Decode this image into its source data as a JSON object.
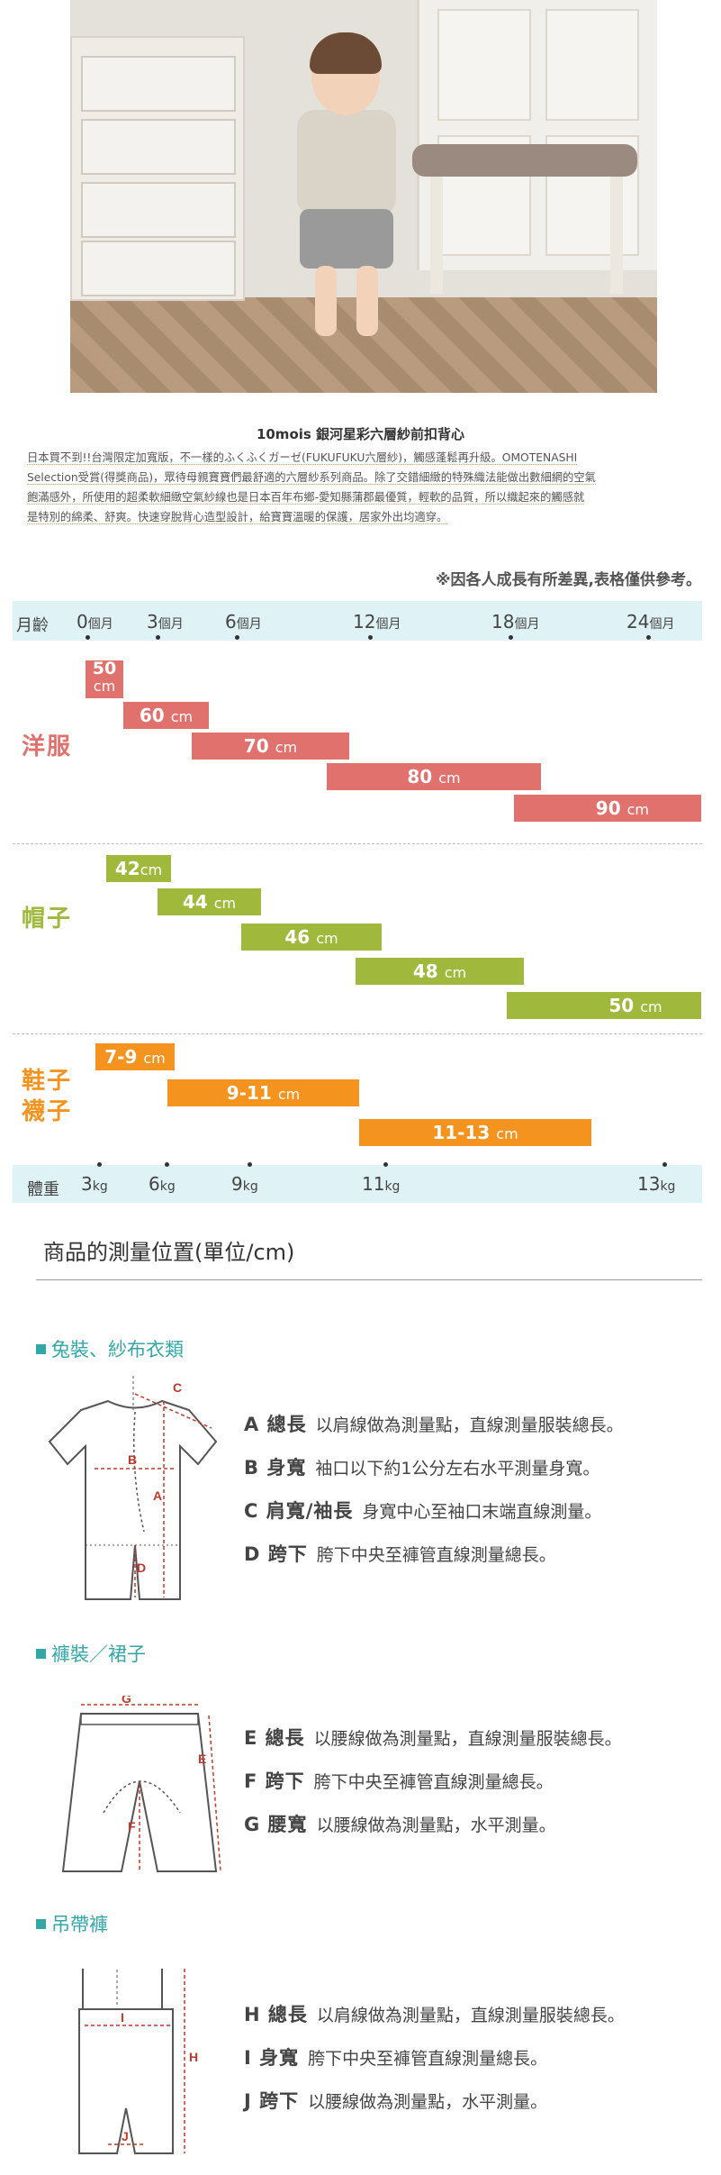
{
  "product": {
    "title": "10mois 銀河星彩六層紗前扣背心",
    "description_lines": [
      "日本買不到!!台灣限定加寬版，不一樣的ふくふくガーゼ(FUKUFUKU六層紗)，觸感蓬鬆再升級。OMOTENASHI",
      "Selection受賞(得獎商品)，眾待母親寶寶們最舒適的六層紗系列商品。除了交錯細緻的特殊織法能做出數細網的空氣",
      "飽滿感外，所使用的超柔軟細緻空氣紗線也是日本百年布鄉-愛知縣蒲郡最優質，輕軟的品質，所以織起來的觸感就",
      "是特別的綿柔、舒爽。快速穿脫背心造型設計，給寶寶溫暖的保護，居家外出均適穿。"
    ]
  },
  "size_chart": {
    "note": "※因各人成長有所差異,表格僅供參考。",
    "age_label": "月齡",
    "weight_label": "體重",
    "ages": [
      {
        "num": "0",
        "unit": "個月"
      },
      {
        "num": "3",
        "unit": "個月"
      },
      {
        "num": "6",
        "unit": "個月"
      },
      {
        "num": "12",
        "unit": "個月"
      },
      {
        "num": "18",
        "unit": "個月"
      },
      {
        "num": "24",
        "unit": "個月"
      }
    ],
    "weights": [
      {
        "num": "3",
        "unit": "kg"
      },
      {
        "num": "6",
        "unit": "kg"
      },
      {
        "num": "9",
        "unit": "kg"
      },
      {
        "num": "11",
        "unit": "kg"
      },
      {
        "num": "13",
        "unit": "kg"
      }
    ],
    "clothing": {
      "label": "洋服",
      "color": "#e0716d",
      "bars": [
        {
          "value": "50",
          "unit": "cm"
        },
        {
          "value": "60",
          "unit": "cm"
        },
        {
          "value": "70",
          "unit": "cm"
        },
        {
          "value": "80",
          "unit": "cm"
        },
        {
          "value": "90",
          "unit": "cm"
        }
      ]
    },
    "hats": {
      "label": "帽子",
      "color": "#a0b93c",
      "bars": [
        {
          "value": "42",
          "unit": "cm"
        },
        {
          "value": "44",
          "unit": "cm"
        },
        {
          "value": "46",
          "unit": "cm"
        },
        {
          "value": "48",
          "unit": "cm"
        },
        {
          "value": "50",
          "unit": "cm"
        }
      ]
    },
    "shoes": {
      "label_line1": "鞋子",
      "label_line2": "襪子",
      "color": "#f4931e",
      "bars": [
        {
          "value": "7-9",
          "unit": "cm"
        },
        {
          "value": "9-11",
          "unit": "cm"
        },
        {
          "value": "11-13",
          "unit": "cm"
        }
      ]
    }
  },
  "measurement": {
    "title": "商品的測量位置(單位/cm)",
    "sections": [
      {
        "title": "兔裝、紗布衣類",
        "rows": [
          {
            "key": "A 總長",
            "desc": "以肩線做為測量點，直線測量服裝總長。"
          },
          {
            "key": "B 身寬",
            "desc": "袖口以下約1公分左右水平測量身寬。"
          },
          {
            "key": "C 肩寬/袖長",
            "desc": "身寬中心至袖口末端直線測量。"
          },
          {
            "key": "D 跨下",
            "desc": "胯下中央至褲管直線測量總長。"
          }
        ],
        "diagram_labels": [
          "C",
          "B",
          "A",
          "D"
        ]
      },
      {
        "title": "褲裝／裙子",
        "rows": [
          {
            "key": "E 總長",
            "desc": "以腰線做為測量點，直線測量服裝總長。"
          },
          {
            "key": "F 跨下",
            "desc": "胯下中央至褲管直線測量總長。"
          },
          {
            "key": "G 腰寬",
            "desc": "以腰線做為測量點，水平測量。"
          }
        ],
        "diagram_labels": [
          "G",
          "E",
          "F"
        ]
      },
      {
        "title": "吊帶褲",
        "rows": [
          {
            "key": "H 總長",
            "desc": "以肩線做為測量點，直線測量服裝總長。"
          },
          {
            "key": "I 身寬",
            "desc": "胯下中央至褲管直線測量總長。"
          },
          {
            "key": "J 跨下",
            "desc": "以腰線做為測量點，水平測量。"
          }
        ],
        "diagram_labels": [
          "I",
          "H",
          "J"
        ]
      }
    ]
  }
}
